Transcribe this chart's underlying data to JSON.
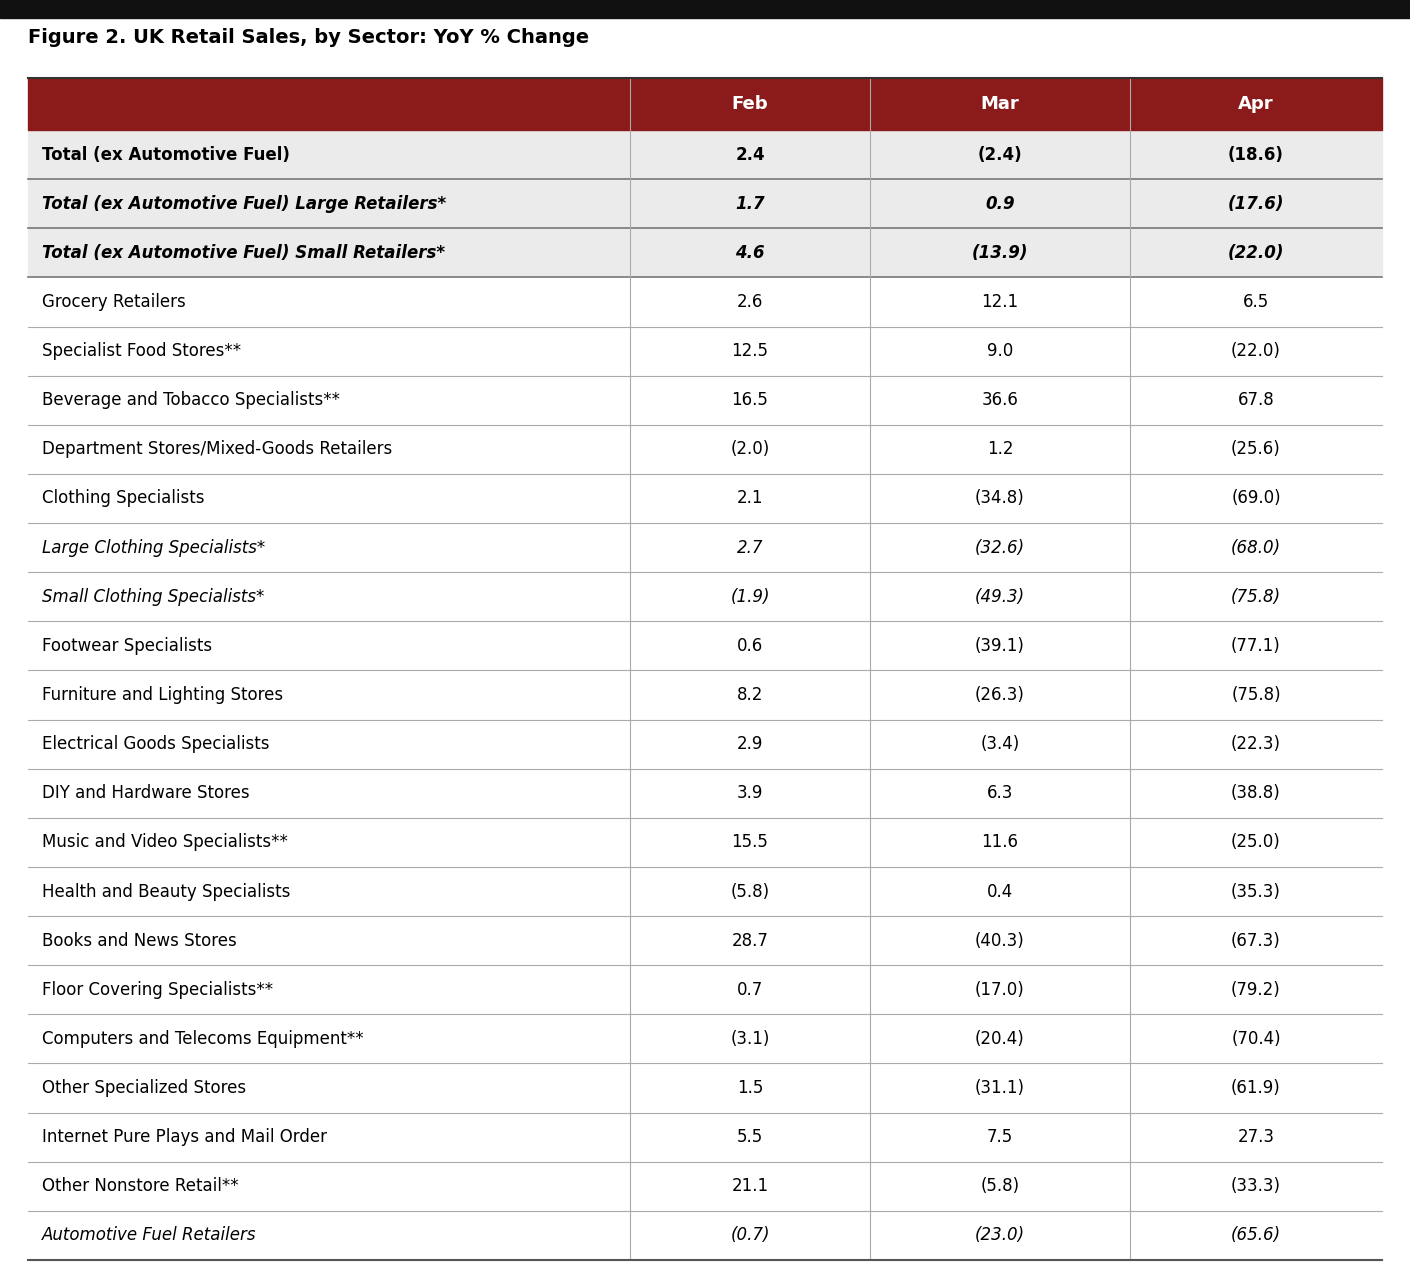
{
  "title": "Figure 2. UK Retail Sales, by Sector: YoY % Change",
  "header_bg": "#8B1A1A",
  "header_text_color": "#FFFFFF",
  "columns": [
    "",
    "Feb",
    "Mar",
    "Apr"
  ],
  "rows": [
    {
      "label": "Total (ex Automotive Fuel)",
      "values": [
        "2.4",
        "(2.4)",
        "(18.6)"
      ],
      "bold": true,
      "italic": false,
      "bg": "#EBEBEB"
    },
    {
      "label": "Total (ex Automotive Fuel) Large Retailers*",
      "values": [
        "1.7",
        "0.9",
        "(17.6)"
      ],
      "bold": true,
      "italic": true,
      "bg": "#EBEBEB"
    },
    {
      "label": "Total (ex Automotive Fuel) Small Retailers*",
      "values": [
        "4.6",
        "(13.9)",
        "(22.0)"
      ],
      "bold": true,
      "italic": true,
      "bg": "#EBEBEB"
    },
    {
      "label": "Grocery Retailers",
      "values": [
        "2.6",
        "12.1",
        "6.5"
      ],
      "bold": false,
      "italic": false,
      "bg": "#FFFFFF"
    },
    {
      "label": "Specialist Food Stores**",
      "values": [
        "12.5",
        "9.0",
        "(22.0)"
      ],
      "bold": false,
      "italic": false,
      "bg": "#FFFFFF"
    },
    {
      "label": "Beverage and Tobacco Specialists**",
      "values": [
        "16.5",
        "36.6",
        "67.8"
      ],
      "bold": false,
      "italic": false,
      "bg": "#FFFFFF"
    },
    {
      "label": "Department Stores/Mixed-Goods Retailers",
      "values": [
        "(2.0)",
        "1.2",
        "(25.6)"
      ],
      "bold": false,
      "italic": false,
      "bg": "#FFFFFF"
    },
    {
      "label": "Clothing Specialists",
      "values": [
        "2.1",
        "(34.8)",
        "(69.0)"
      ],
      "bold": false,
      "italic": false,
      "bg": "#FFFFFF"
    },
    {
      "label": "Large Clothing Specialists*",
      "values": [
        "2.7",
        "(32.6)",
        "(68.0)"
      ],
      "bold": false,
      "italic": true,
      "bg": "#FFFFFF"
    },
    {
      "label": "Small Clothing Specialists*",
      "values": [
        "(1.9)",
        "(49.3)",
        "(75.8)"
      ],
      "bold": false,
      "italic": true,
      "bg": "#FFFFFF"
    },
    {
      "label": "Footwear Specialists",
      "values": [
        "0.6",
        "(39.1)",
        "(77.1)"
      ],
      "bold": false,
      "italic": false,
      "bg": "#FFFFFF"
    },
    {
      "label": "Furniture and Lighting Stores",
      "values": [
        "8.2",
        "(26.3)",
        "(75.8)"
      ],
      "bold": false,
      "italic": false,
      "bg": "#FFFFFF"
    },
    {
      "label": "Electrical Goods Specialists",
      "values": [
        "2.9",
        "(3.4)",
        "(22.3)"
      ],
      "bold": false,
      "italic": false,
      "bg": "#FFFFFF"
    },
    {
      "label": "DIY and Hardware Stores",
      "values": [
        "3.9",
        "6.3",
        "(38.8)"
      ],
      "bold": false,
      "italic": false,
      "bg": "#FFFFFF"
    },
    {
      "label": "Music and Video Specialists**",
      "values": [
        "15.5",
        "11.6",
        "(25.0)"
      ],
      "bold": false,
      "italic": false,
      "bg": "#FFFFFF"
    },
    {
      "label": "Health and Beauty Specialists",
      "values": [
        "(5.8)",
        "0.4",
        "(35.3)"
      ],
      "bold": false,
      "italic": false,
      "bg": "#FFFFFF"
    },
    {
      "label": "Books and News Stores",
      "values": [
        "28.7",
        "(40.3)",
        "(67.3)"
      ],
      "bold": false,
      "italic": false,
      "bg": "#FFFFFF"
    },
    {
      "label": "Floor Covering Specialists**",
      "values": [
        "0.7",
        "(17.0)",
        "(79.2)"
      ],
      "bold": false,
      "italic": false,
      "bg": "#FFFFFF"
    },
    {
      "label": "Computers and Telecoms Equipment**",
      "values": [
        "(3.1)",
        "(20.4)",
        "(70.4)"
      ],
      "bold": false,
      "italic": false,
      "bg": "#FFFFFF"
    },
    {
      "label": "Other Specialized Stores",
      "values": [
        "1.5",
        "(31.1)",
        "(61.9)"
      ],
      "bold": false,
      "italic": false,
      "bg": "#FFFFFF"
    },
    {
      "label": "Internet Pure Plays and Mail Order",
      "values": [
        "5.5",
        "7.5",
        "27.3"
      ],
      "bold": false,
      "italic": false,
      "bg": "#FFFFFF"
    },
    {
      "label": "Other Nonstore Retail**",
      "values": [
        "21.1",
        "(5.8)",
        "(33.3)"
      ],
      "bold": false,
      "italic": false,
      "bg": "#FFFFFF"
    },
    {
      "label": "Automotive Fuel Retailers",
      "values": [
        "(0.7)",
        "(23.0)",
        "(65.6)"
      ],
      "bold": false,
      "italic": true,
      "bg": "#FFFFFF"
    }
  ],
  "top_bar_color": "#111111",
  "divider_color": "#AAAAAA",
  "text_color": "#000000",
  "title_fontsize": 14,
  "header_fontsize": 13,
  "cell_fontsize": 12
}
